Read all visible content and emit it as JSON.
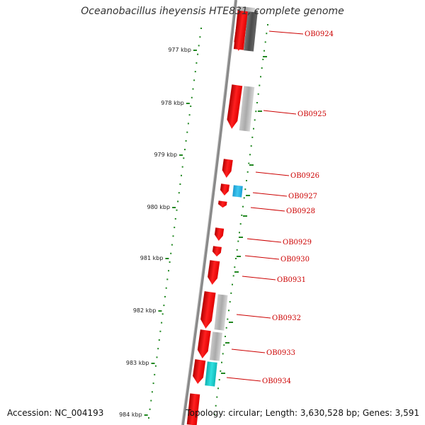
{
  "title": "Oceanobacillus iheyensis HTE831, complete genome",
  "accession": "Accession: NC_004193",
  "summary": "Topology: circular; Length: 3,630,528 bp; Genes: 3,591",
  "scale_unit": "kbp",
  "scale_ticks": [
    977,
    978,
    979,
    980,
    981,
    982,
    983,
    984
  ],
  "colors": {
    "backbone": "#8a8a8a",
    "gene_red": "#ee0000",
    "gene_gray": "#aaaaaa",
    "gene_dark": "#555555",
    "gene_blue": "#22b8e8",
    "gene_cyan": "#22cccc",
    "label": "#cc0000",
    "dots": "#228822"
  },
  "genes": [
    {
      "label": "OB0924"
    },
    {
      "label": "OB0925"
    },
    {
      "label": "OB0926"
    },
    {
      "label": "OB0927"
    },
    {
      "label": "OB0928"
    },
    {
      "label": "OB0929"
    },
    {
      "label": "OB0930"
    },
    {
      "label": "OB0931"
    },
    {
      "label": "OB0932"
    },
    {
      "label": "OB0933"
    },
    {
      "label": "OB0934"
    }
  ]
}
